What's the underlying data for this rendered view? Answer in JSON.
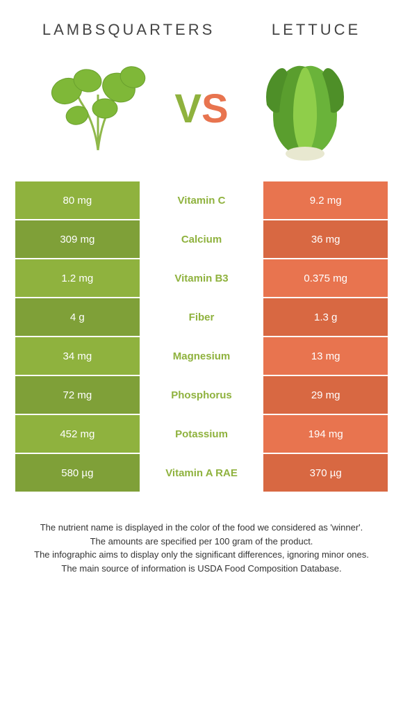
{
  "colors": {
    "left": "#8fb23e",
    "right": "#e8744f",
    "left_dark": "#7fa038",
    "right_dark": "#d86842"
  },
  "header": {
    "left_title": "LAMBSQUARTERS",
    "right_title": "LETTUCE"
  },
  "vs": {
    "v": "V",
    "s": "S"
  },
  "rows": [
    {
      "left": "80 mg",
      "label": "Vitamin C",
      "right": "9.2 mg",
      "winner": "left"
    },
    {
      "left": "309 mg",
      "label": "Calcium",
      "right": "36 mg",
      "winner": "left"
    },
    {
      "left": "1.2 mg",
      "label": "Vitamin B3",
      "right": "0.375 mg",
      "winner": "left"
    },
    {
      "left": "4 g",
      "label": "Fiber",
      "right": "1.3 g",
      "winner": "left"
    },
    {
      "left": "34 mg",
      "label": "Magnesium",
      "right": "13 mg",
      "winner": "left"
    },
    {
      "left": "72 mg",
      "label": "Phosphorus",
      "right": "29 mg",
      "winner": "left"
    },
    {
      "left": "452 mg",
      "label": "Potassium",
      "right": "194 mg",
      "winner": "left"
    },
    {
      "left": "580 µg",
      "label": "Vitamin A RAE",
      "right": "370 µg",
      "winner": "left"
    }
  ],
  "footer": {
    "line1": "The nutrient name is displayed in the color of the food we considered as 'winner'.",
    "line2": "The amounts are specified per 100 gram of the product.",
    "line3": "The infographic aims to display only the significant differences, ignoring minor ones.",
    "line4": "The main source of information is USDA Food Composition Database."
  }
}
